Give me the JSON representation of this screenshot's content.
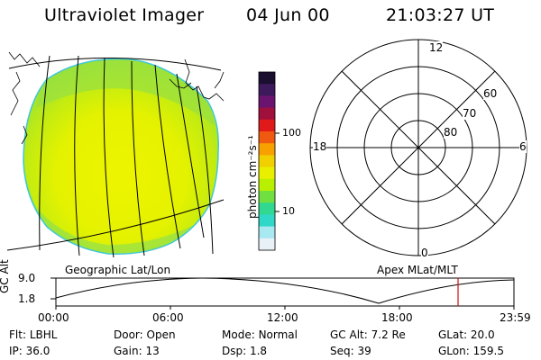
{
  "header": {
    "title": "Ultraviolet Imager",
    "date": "04 Jun 00",
    "time": "21:03:27 UT"
  },
  "colorbar": {
    "unit_label": "photon cm⁻²s⁻¹",
    "ticks": [
      "100",
      "10"
    ],
    "colors": [
      "#1a0f2e",
      "#3c1a5c",
      "#6a1470",
      "#a0103c",
      "#e01a1a",
      "#f05a10",
      "#f8a000",
      "#f0d000",
      "#e8f000",
      "#b8f000",
      "#70e040",
      "#30d890",
      "#30d8c8",
      "#a8e8f0",
      "#e8f0f8"
    ]
  },
  "polar": {
    "mlt_labels": {
      "top": "12",
      "left": "18",
      "right": "6",
      "bottom": "0"
    },
    "lat_labels": [
      "60",
      "70",
      "80"
    ]
  },
  "map_labels": {
    "left": "Geographic Lat/Lon",
    "right": "Apex MLat/MLT"
  },
  "timeline": {
    "ylabel": "GC Alt",
    "ymax": "9.0",
    "ymin": "1.8",
    "x_ticks": [
      "00:00",
      "06:00",
      "12:00",
      "18:00",
      "23:59"
    ],
    "current_marker_time": "21:03"
  },
  "footer": {
    "row1": [
      {
        "label": "Flt:",
        "value": "LBHL"
      },
      {
        "label": "Door:",
        "value": "Open"
      },
      {
        "label": "Mode:",
        "value": "Normal"
      },
      {
        "label": "GC Alt:",
        "value": "7.2 Re"
      },
      {
        "label": "GLat:",
        "value": "20.0"
      }
    ],
    "row2": [
      {
        "label": "IP:",
        "value": "36.0"
      },
      {
        "label": "Gain:",
        "value": "13"
      },
      {
        "label": "Dsp:",
        "value": "1.8"
      },
      {
        "label": "Seq:",
        "value": "39"
      },
      {
        "label": "GLon:",
        "value": "159.5"
      }
    ]
  }
}
